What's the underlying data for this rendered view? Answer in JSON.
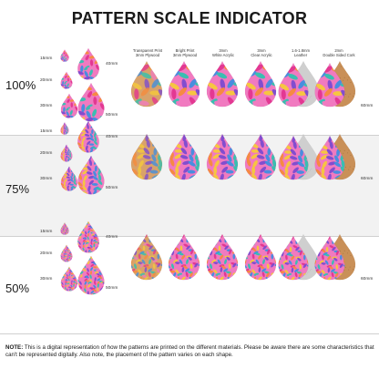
{
  "title": "PATTERN SCALE INDICATOR",
  "materials": [
    {
      "label": "Transparent Print\n3mm Plywood"
    },
    {
      "label": "Bright Print\n3mm Plywood"
    },
    {
      "label": "3mm\nWhite Acrylic"
    },
    {
      "label": "3mm\nClear Acrylic"
    },
    {
      "label": "1.6-1.8mm\nLeather"
    },
    {
      "label": "2mm\nDouble Sided Cork"
    }
  ],
  "rows": [
    {
      "scale": "100%",
      "sizes": [
        "15mm",
        "20mm",
        "30mm",
        "40mm",
        "50mm"
      ],
      "max_size": "60mm"
    },
    {
      "scale": "75%",
      "sizes": [
        "15mm",
        "20mm",
        "30mm",
        "40mm",
        "50mm"
      ],
      "max_size": "60mm"
    },
    {
      "scale": "50%",
      "sizes": [
        "15mm",
        "20mm",
        "30mm",
        "40mm",
        "50mm"
      ],
      "max_size": "60mm"
    }
  ],
  "note": {
    "label": "NOTE:",
    "text": "This is a digital representation of how the patterns are printed on the different materials. Please be aware there are some characteristics that can't be represented digitally. Also note, the placement of the pattern varies on each shape."
  },
  "colors": {
    "magenta": "#e2358f",
    "pink": "#f07ac0",
    "orange": "#f58a3c",
    "yellow": "#f5c93a",
    "purple": "#7b4bd0",
    "blue": "#3f8ee0",
    "teal": "#2fc2b0",
    "plywood": "#d9a26a",
    "cork": "#c99058",
    "leather": "#cfcfcf"
  }
}
